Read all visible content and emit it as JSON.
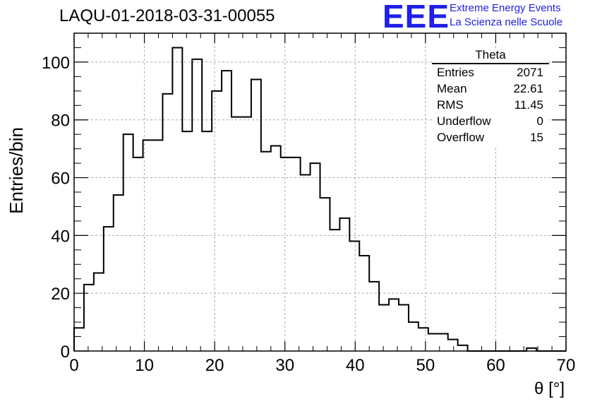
{
  "header": {
    "run_title": "LAQU-01-2018-03-31-00055"
  },
  "logo": {
    "mark": "EEE",
    "line1": "Extreme Energy Events",
    "line2": "La Scienza nelle Scuole",
    "color": "#1f1fe8"
  },
  "stats": {
    "name": "Theta",
    "rows": [
      {
        "label": "Entries",
        "value": "2071"
      },
      {
        "label": "Mean",
        "value": "22.61"
      },
      {
        "label": "RMS",
        "value": "11.45"
      },
      {
        "label": "Underflow",
        "value": "0"
      },
      {
        "label": "Overflow",
        "value": "15"
      }
    ]
  },
  "chart_data": {
    "type": "bar",
    "style": "step-histogram",
    "title": "LAQU-01-2018-03-31-00055",
    "xlabel": "θ [°]",
    "ylabel": "Entries/bin",
    "xlim": [
      0,
      70
    ],
    "ylim": [
      0,
      110
    ],
    "bin_width": 1.4,
    "x_ticks": [
      0,
      10,
      20,
      30,
      40,
      50,
      60,
      70
    ],
    "y_ticks": [
      0,
      20,
      40,
      60,
      80,
      100
    ],
    "x_tick_labels": [
      "0",
      "10",
      "20",
      "30",
      "40",
      "50",
      "60",
      "70"
    ],
    "y_tick_labels": [
      "0",
      "20",
      "40",
      "60",
      "80",
      "100"
    ],
    "grid": true,
    "legend": "top-right stats box",
    "values": [
      8,
      23,
      27,
      43,
      54,
      75,
      67,
      73,
      73,
      89,
      105,
      76,
      101,
      76,
      90,
      97,
      81,
      81,
      94,
      69,
      71,
      67,
      67,
      61,
      65,
      53,
      42,
      46,
      38,
      33,
      24,
      16,
      18,
      16,
      10,
      8,
      6,
      6,
      4,
      2,
      0,
      0,
      0,
      0,
      0,
      0,
      1,
      0,
      0,
      0
    ]
  }
}
